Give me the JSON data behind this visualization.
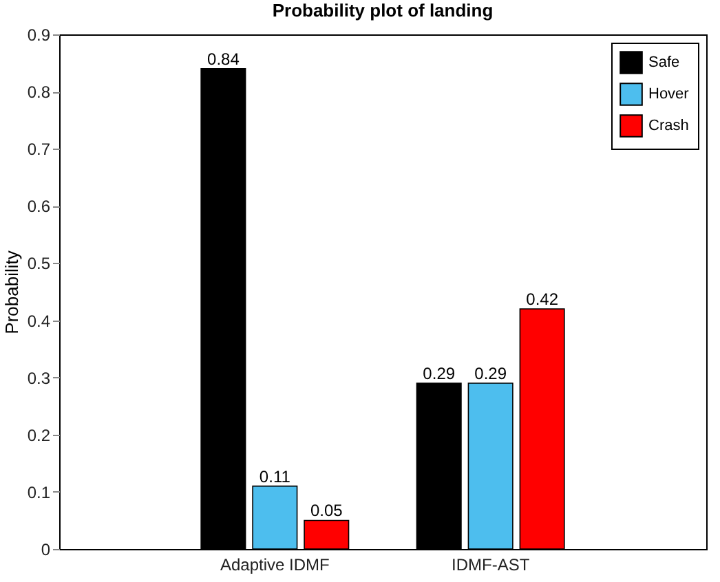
{
  "chart_data": {
    "type": "bar",
    "title": "Probability plot of landing",
    "ylabel": "Probability",
    "categories": [
      "Adaptive IDMF",
      "IDMF-AST"
    ],
    "series": [
      {
        "name": "Safe",
        "color": "#000000",
        "values": [
          0.84,
          0.29
        ]
      },
      {
        "name": "Hover",
        "color": "#4dbeee",
        "values": [
          0.11,
          0.29
        ]
      },
      {
        "name": "Crash",
        "color": "#ff0000",
        "values": [
          0.05,
          0.42
        ]
      }
    ],
    "ylim": [
      0,
      0.9
    ],
    "yticks": [
      0,
      0.1,
      0.2,
      0.3,
      0.4,
      0.5,
      0.6,
      0.7,
      0.8,
      0.9
    ],
    "data_labels": true,
    "legend": "top right",
    "grid": false
  }
}
